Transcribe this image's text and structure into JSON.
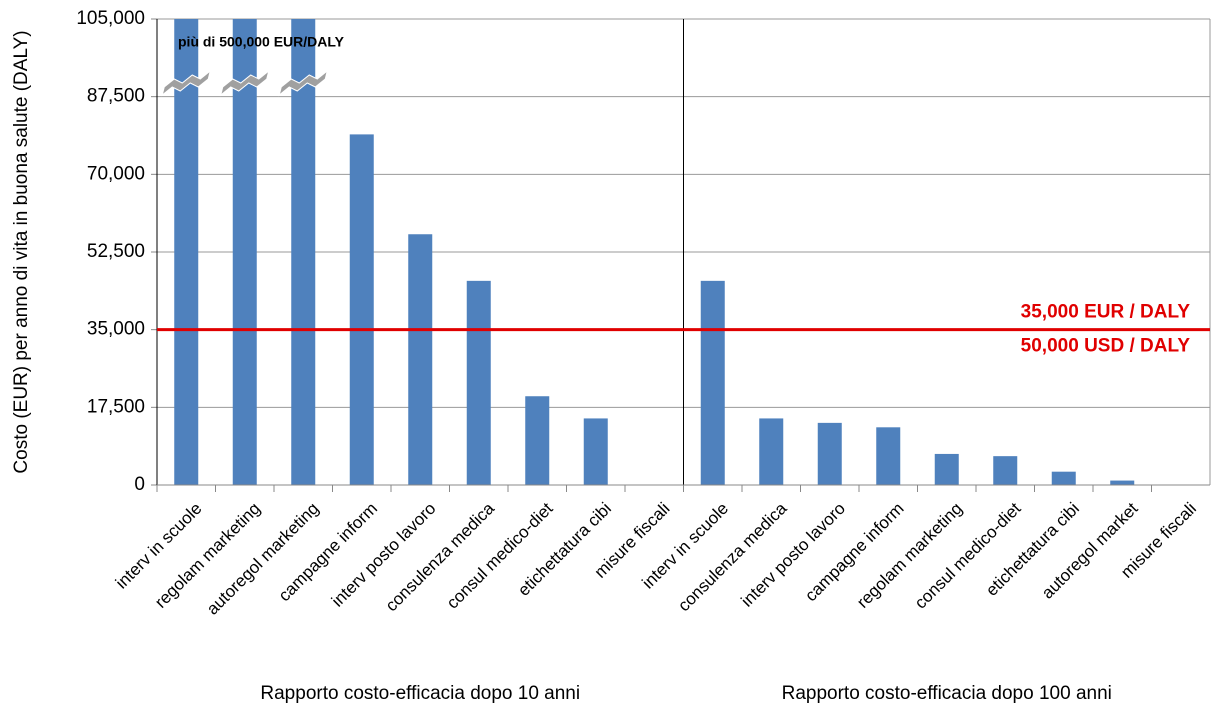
{
  "chart_data": {
    "type": "bar",
    "y_label": "Costo (EUR) per anno di vita in buona salute (DALY)",
    "color": "#4f81bd",
    "ylim": [
      0,
      105000
    ],
    "yticks": [
      0,
      {
        "value": 17500,
        "label": "17,500"
      },
      {
        "value": 35000,
        "label": "35,000"
      },
      {
        "value": 52500,
        "label": "52,500"
      },
      {
        "value": 70000,
        "label": "70,000"
      },
      {
        "value": 87500,
        "label": "87,500"
      },
      {
        "value": 105000,
        "label": "105,000"
      }
    ],
    "grid": true,
    "annotation": "più di 500,000 EUR/DALY",
    "reference_line": {
      "value": 35000,
      "color": "#e00000",
      "labels": [
        "35,000 EUR / DALY",
        "50,000 USD / DALY"
      ]
    },
    "groups": [
      {
        "label": "Rapporto costo-efficacia dopo 10 anni",
        "categories": [
          "interv in scuole",
          "regolam marketing",
          "autoregol marketing",
          "campagne inform",
          "interv posto lavoro",
          "consulenza medica",
          "consul medico-diet",
          "etichettatura cibi",
          "misure fiscali"
        ],
        "values": [
          105000,
          105000,
          105000,
          79000,
          56500,
          46000,
          20000,
          15000,
          0
        ]
      },
      {
        "label": "Rapporto costo-efficacia dopo 100 anni",
        "categories": [
          "interv in scuole",
          "consulenza medica",
          "interv posto lavoro",
          "campagne inform",
          "regolam marketing",
          "consul medico-diet",
          "etichettatura cibi",
          "autoregol market",
          "misure fiscali"
        ],
        "values": [
          46000,
          15000,
          14000,
          13000,
          7000,
          6500,
          3000,
          1000,
          0
        ]
      }
    ]
  }
}
